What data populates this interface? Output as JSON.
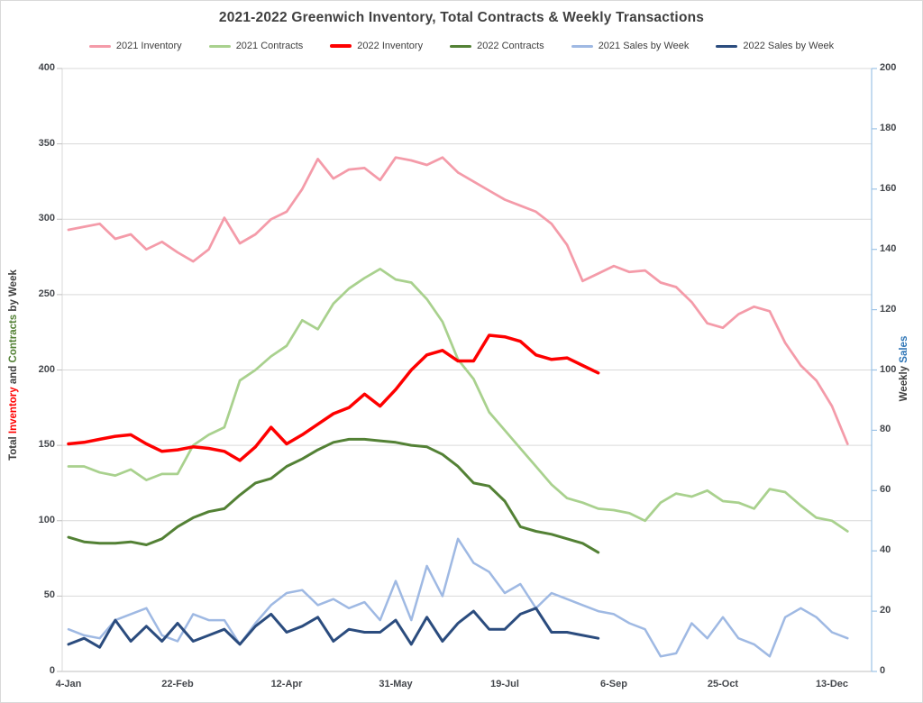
{
  "title": "2021-2022 Greenwich Inventory, Total Contracts & Weekly Transactions",
  "left_axis": {
    "title_parts": [
      {
        "text": "Total ",
        "color": "#404040"
      },
      {
        "text": "Inventory",
        "color": "#ff0000"
      },
      {
        "text": " and ",
        "color": "#404040"
      },
      {
        "text": "Contracts",
        "color": "#538135"
      },
      {
        "text": " by Week",
        "color": "#404040"
      }
    ],
    "min": 0,
    "max": 400,
    "ticks": [
      0,
      50,
      100,
      150,
      200,
      250,
      300,
      350,
      400
    ]
  },
  "right_axis": {
    "title_parts": [
      {
        "text": "Weekly ",
        "color": "#404040"
      },
      {
        "text": "Sales",
        "color": "#2e75b6"
      }
    ],
    "min": 0,
    "max": 200,
    "ticks": [
      0,
      20,
      40,
      60,
      80,
      100,
      120,
      140,
      160,
      180,
      200
    ]
  },
  "x_axis": {
    "ticks": [
      {
        "label": "4-Jan",
        "week": 0
      },
      {
        "label": "22-Feb",
        "week": 7
      },
      {
        "label": "12-Apr",
        "week": 14
      },
      {
        "label": "31-May",
        "week": 21
      },
      {
        "label": "19-Jul",
        "week": 28
      },
      {
        "label": "6-Sep",
        "week": 35
      },
      {
        "label": "25-Oct",
        "week": 42
      },
      {
        "label": "13-Dec",
        "week": 49
      }
    ]
  },
  "colors": {
    "gridline": "#d9d9d9",
    "zero_axis": "#bfbfbf",
    "left_axis_line": "#d9d9d9",
    "left_tick": "#bfbfbf",
    "right_axis_line": "#9dc3e6",
    "border": "#d9d9d9"
  },
  "chart_data": {
    "type": "line",
    "x_unit": "week (weekly points starting 4-Jan)",
    "grid": "horizontal gridlines every 50 (left axis)",
    "legend_position": "top",
    "series": [
      {
        "name": "2021 Inventory",
        "axis": "left",
        "color": "#f49ba9",
        "width": 2.75,
        "values": [
          293,
          295,
          297,
          287,
          290,
          280,
          285,
          278,
          272,
          280,
          301,
          284,
          290,
          300,
          305,
          320,
          340,
          327,
          333,
          334,
          326,
          341,
          339,
          336,
          341,
          331,
          325,
          319,
          313,
          309,
          305,
          297,
          283,
          259,
          264,
          269,
          265,
          266,
          258,
          255,
          245,
          231,
          228,
          237,
          242,
          239,
          218,
          203,
          193,
          176,
          151
        ]
      },
      {
        "name": "2021 Contracts",
        "axis": "left",
        "color": "#a9d18e",
        "width": 2.75,
        "values": [
          136,
          136,
          132,
          130,
          134,
          127,
          131,
          131,
          150,
          157,
          162,
          193,
          200,
          209,
          216,
          233,
          227,
          244,
          254,
          261,
          267,
          260,
          258,
          247,
          232,
          207,
          194,
          172,
          160,
          148,
          136,
          124,
          115,
          112,
          108,
          107,
          105,
          100,
          112,
          118,
          116,
          120,
          113,
          112,
          108,
          121,
          119,
          110,
          102,
          100,
          93
        ]
      },
      {
        "name": "2022 Inventory",
        "axis": "left",
        "color": "#fe0000",
        "width": 3.5,
        "values": [
          151,
          152,
          154,
          156,
          157,
          151,
          146,
          147,
          149,
          148,
          146,
          140,
          149,
          162,
          151,
          157,
          164,
          171,
          175,
          184,
          176,
          187,
          200,
          210,
          213,
          206,
          206,
          223,
          222,
          219,
          210,
          207,
          208,
          203,
          198
        ]
      },
      {
        "name": "2022 Contracts",
        "axis": "left",
        "color": "#538135",
        "width": 3,
        "values": [
          89,
          86,
          85,
          85,
          86,
          84,
          88,
          96,
          102,
          106,
          108,
          117,
          125,
          128,
          136,
          141,
          147,
          152,
          154,
          154,
          153,
          152,
          150,
          149,
          144,
          136,
          125,
          123,
          113,
          96,
          93,
          91,
          88,
          85,
          79
        ]
      },
      {
        "name": "2021 Sales by Week",
        "axis": "right",
        "color": "#9fb9e3",
        "width": 2.5,
        "values": [
          14,
          12,
          11,
          17,
          19,
          21,
          12,
          10,
          19,
          17,
          17,
          9,
          16,
          22,
          26,
          27,
          22,
          24,
          21,
          23,
          17,
          30,
          17,
          35,
          25,
          44,
          36,
          33,
          26,
          29,
          21,
          26,
          24,
          22,
          20,
          19,
          16,
          14,
          5,
          6,
          16,
          11,
          18,
          11,
          9,
          5,
          18,
          21,
          18,
          13,
          11
        ]
      },
      {
        "name": "2022 Sales by Week",
        "axis": "right",
        "color": "#2b4c7e",
        "width": 3,
        "values": [
          9,
          11,
          8,
          17,
          10,
          15,
          10,
          16,
          10,
          12,
          14,
          9,
          15,
          19,
          13,
          15,
          18,
          10,
          14,
          13,
          13,
          17,
          9,
          18,
          10,
          16,
          20,
          14,
          14,
          19,
          21,
          13,
          13,
          12,
          11
        ]
      }
    ]
  }
}
